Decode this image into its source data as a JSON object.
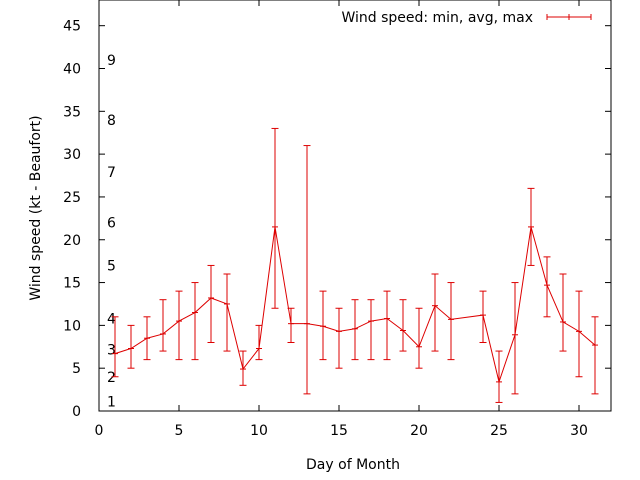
{
  "chart_data": {
    "type": "line",
    "title": "",
    "xlabel": "Day of Month",
    "ylabel": "Wind speed (kt - Beaufort)",
    "xlim": [
      0,
      32
    ],
    "ylim": [
      0,
      48
    ],
    "xticks": [
      "0",
      "5",
      "10",
      "15",
      "20",
      "25",
      "30"
    ],
    "yticks": [
      "0",
      "5",
      "10",
      "15",
      "20",
      "25",
      "30",
      "35",
      "40",
      "45"
    ],
    "grid": false,
    "legend_position": "top-right",
    "beaufort_labels": [
      {
        "label": "1",
        "value": 1.1
      },
      {
        "label": "2",
        "value": 4.0
      },
      {
        "label": "3",
        "value": 7.2
      },
      {
        "label": "4",
        "value": 10.8
      },
      {
        "label": "5",
        "value": 17.0
      },
      {
        "label": "6",
        "value": 22.0
      },
      {
        "label": "7",
        "value": 27.9
      },
      {
        "label": "8",
        "value": 34.0
      },
      {
        "label": "9",
        "value": 41.0
      }
    ],
    "series": [
      {
        "name": "Wind speed: min, avg, max",
        "color": "#dd0000",
        "x": [
          1,
          2,
          3,
          4,
          5,
          6,
          7,
          8,
          9,
          10,
          11,
          12,
          13,
          14,
          15,
          16,
          17,
          18,
          19,
          20,
          21,
          22,
          24,
          25,
          26,
          27,
          28,
          29,
          30,
          31
        ],
        "avg": [
          6.7,
          7.3,
          8.5,
          9.0,
          10.5,
          11.5,
          13.2,
          12.5,
          4.9,
          7.3,
          21.5,
          10.2,
          10.2,
          9.9,
          9.3,
          9.6,
          10.5,
          10.8,
          9.4,
          7.5,
          12.3,
          10.7,
          11.2,
          3.4,
          8.9,
          21.5,
          14.7,
          10.4,
          9.3,
          7.7
        ],
        "min": [
          4.0,
          5.0,
          6.0,
          7.0,
          6.0,
          6.0,
          8.0,
          7.0,
          3.0,
          6.0,
          12.0,
          8.0,
          2.0,
          6.0,
          5.0,
          6.0,
          6.0,
          6.0,
          7.0,
          5.0,
          7.0,
          6.0,
          8.0,
          1.0,
          2.0,
          17.0,
          11.0,
          7.0,
          4.0,
          2.0
        ],
        "max": [
          11.0,
          10.0,
          11.0,
          13.0,
          14.0,
          15.0,
          17.0,
          16.0,
          7.0,
          10.0,
          33.0,
          12.0,
          31.0,
          14.0,
          12.0,
          13.0,
          13.0,
          14.0,
          13.0,
          12.0,
          16.0,
          15.0,
          14.0,
          7.0,
          15.0,
          26.0,
          18.0,
          16.0,
          14.0,
          11.0
        ]
      }
    ]
  }
}
